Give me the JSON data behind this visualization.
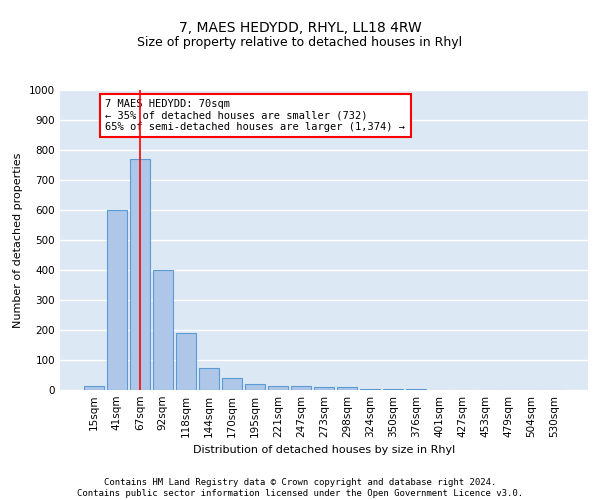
{
  "title1": "7, MAES HEDYDD, RHYL, LL18 4RW",
  "title2": "Size of property relative to detached houses in Rhyl",
  "xlabel": "Distribution of detached houses by size in Rhyl",
  "ylabel": "Number of detached properties",
  "bin_labels": [
    "15sqm",
    "41sqm",
    "67sqm",
    "92sqm",
    "118sqm",
    "144sqm",
    "170sqm",
    "195sqm",
    "221sqm",
    "247sqm",
    "273sqm",
    "298sqm",
    "324sqm",
    "350sqm",
    "376sqm",
    "401sqm",
    "427sqm",
    "453sqm",
    "479sqm",
    "504sqm",
    "530sqm"
  ],
  "bar_values": [
    15,
    600,
    770,
    400,
    190,
    75,
    40,
    20,
    15,
    15,
    10,
    10,
    5,
    3,
    2,
    1,
    1,
    1,
    0,
    0,
    0
  ],
  "bar_color": "#aec6e8",
  "bar_edge_color": "#5b9bd5",
  "property_line_x": 2.0,
  "property_sqm": 70,
  "annotation_text": "7 MAES HEDYDD: 70sqm\n← 35% of detached houses are smaller (732)\n65% of semi-detached houses are larger (1,374) →",
  "annotation_box_color": "white",
  "annotation_box_edge_color": "red",
  "property_line_color": "red",
  "ylim": [
    0,
    1000
  ],
  "yticks": [
    0,
    100,
    200,
    300,
    400,
    500,
    600,
    700,
    800,
    900,
    1000
  ],
  "footnote": "Contains HM Land Registry data © Crown copyright and database right 2024.\nContains public sector information licensed under the Open Government Licence v3.0.",
  "background_color": "#dde8f5",
  "grid_color": "#ffffff",
  "title1_fontsize": 10,
  "title2_fontsize": 9,
  "xlabel_fontsize": 8,
  "ylabel_fontsize": 8,
  "tick_fontsize": 7.5,
  "annotation_fontsize": 7.5,
  "footnote_fontsize": 6.5
}
